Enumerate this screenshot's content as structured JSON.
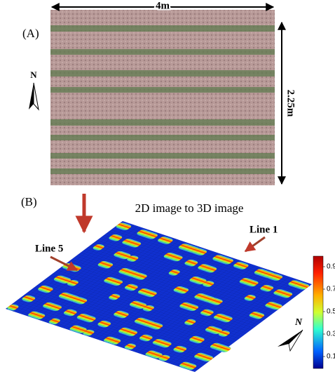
{
  "panel_a": {
    "label": "(A)",
    "width_label": "4m",
    "height_label": "2.25m",
    "north": "N"
  },
  "panel_b": {
    "label": "(B)",
    "title": "2D image to 3D image",
    "line_1": "Line 1",
    "line_5": "Line 5",
    "north": "N",
    "colorbar": {
      "ticks": [
        "0.9",
        "0.7",
        "0.5",
        "0.3",
        "0.1"
      ]
    }
  }
}
